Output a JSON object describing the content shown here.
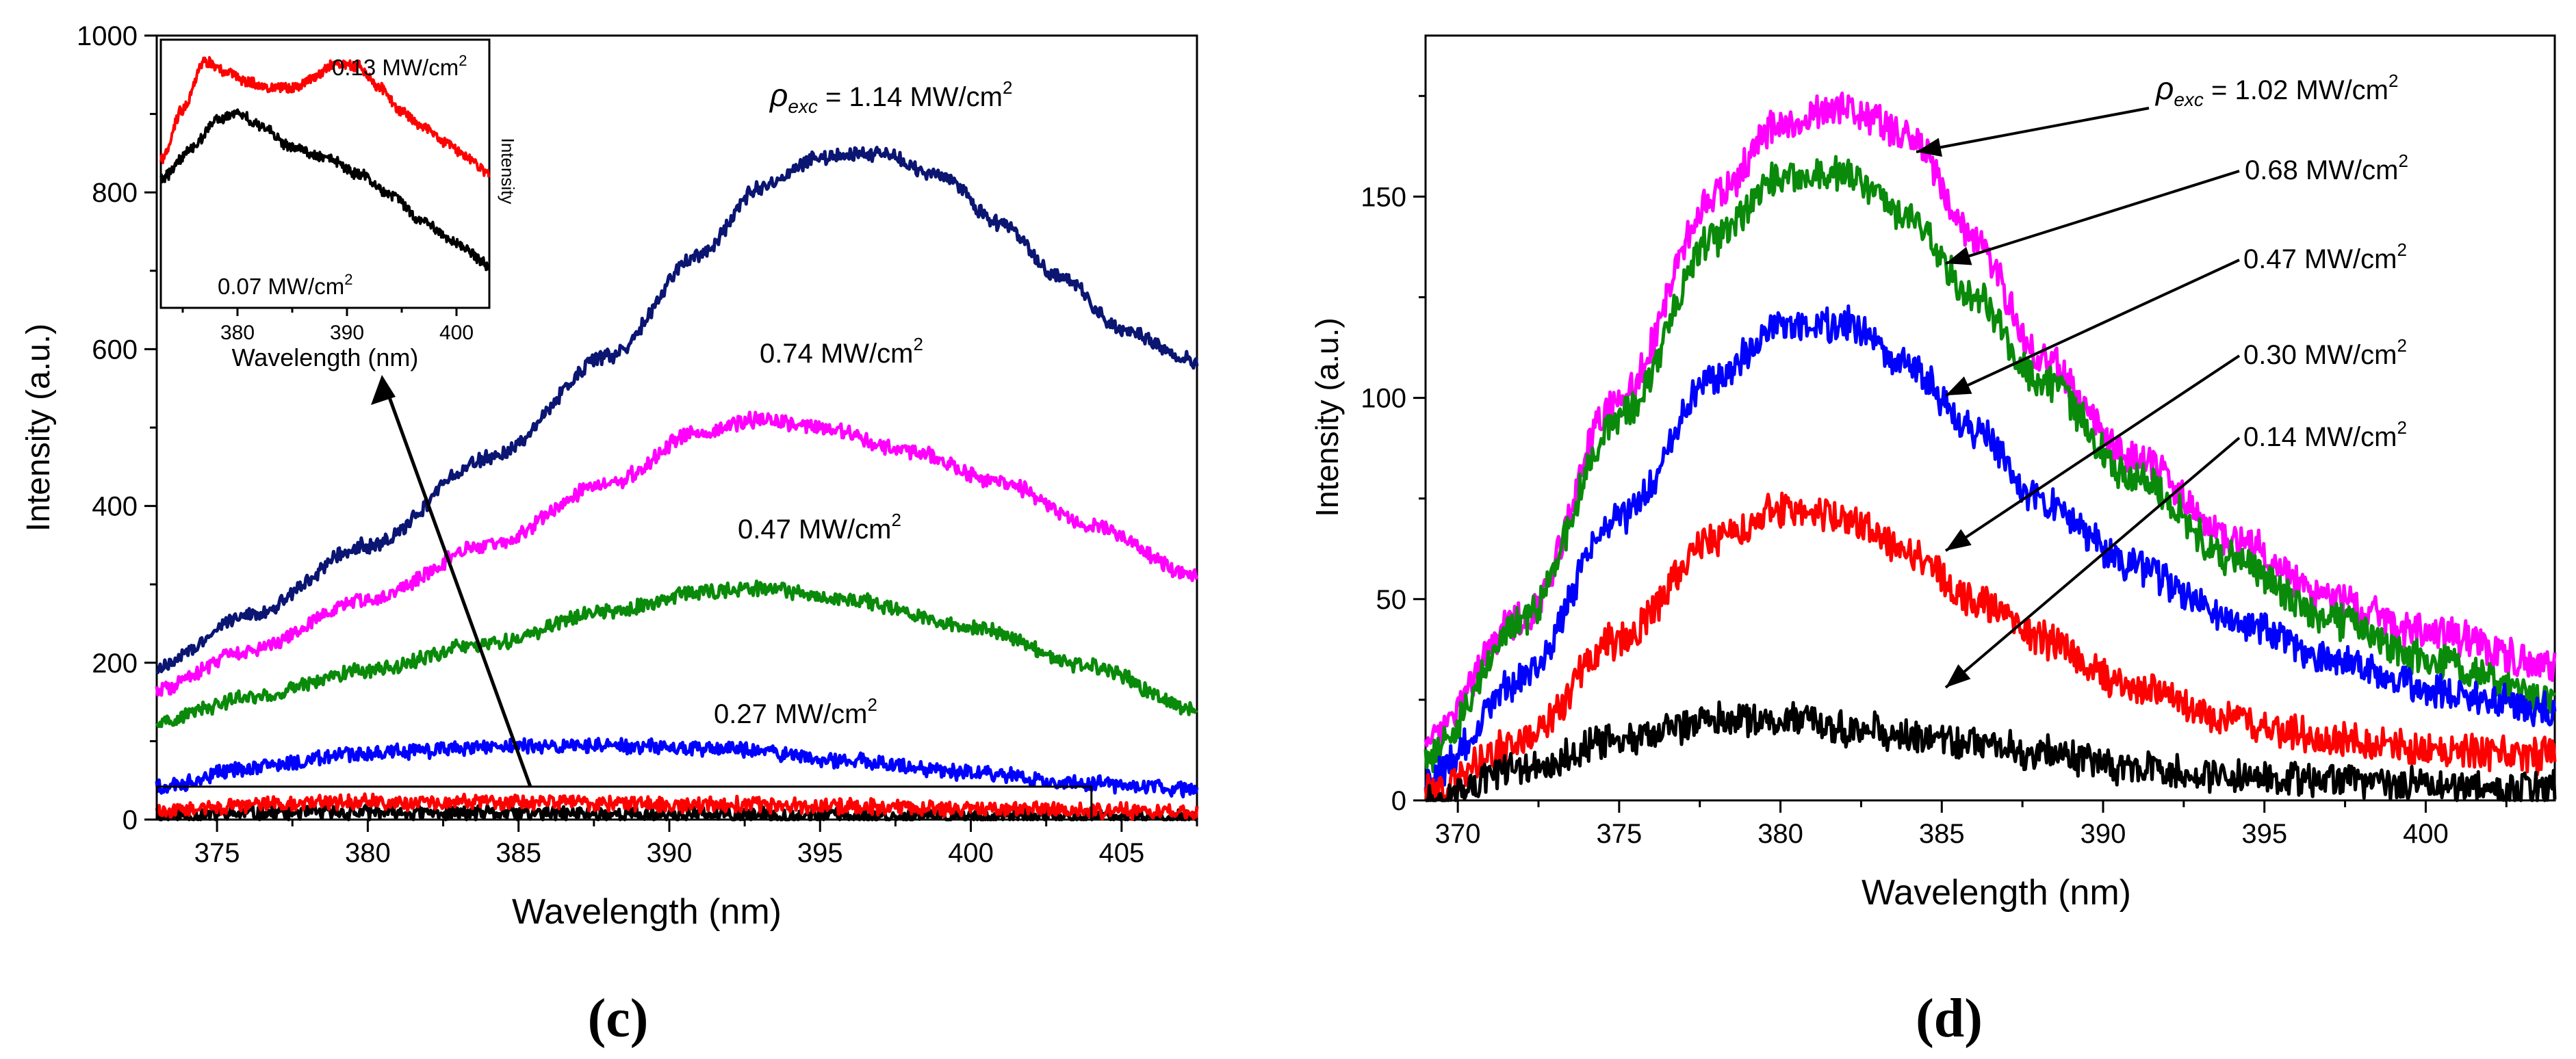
{
  "panel_labels": {
    "c": "(c)",
    "d": "(d)"
  },
  "chart_data": [
    {
      "id": "c",
      "type": "line",
      "xlabel": "Wavelength (nm)",
      "ylabel": "Intensity (a.u.)",
      "xlim": [
        373,
        407.5
      ],
      "ylim": [
        0,
        1000
      ],
      "xticks": [
        375,
        380,
        385,
        390,
        395,
        400,
        405
      ],
      "yticks": [
        0,
        200,
        400,
        600,
        800,
        1000
      ],
      "noise": 11,
      "series": [
        {
          "name": "1.14 MW/cm2",
          "color": "#0b1572",
          "points": [
            [
              373,
              195
            ],
            [
              376,
              260
            ],
            [
              380,
              350
            ],
            [
              384,
              460
            ],
            [
              388,
              590
            ],
            [
              391,
              720
            ],
            [
              393,
              805
            ],
            [
              395,
              845
            ],
            [
              397,
              850
            ],
            [
              399,
              820
            ],
            [
              401,
              760
            ],
            [
              403,
              690
            ],
            [
              405,
              625
            ],
            [
              407.5,
              585
            ]
          ]
        },
        {
          "name": "0.74 MW/cm2",
          "color": "#ff00ff",
          "points": [
            [
              373,
              165
            ],
            [
              376,
              215
            ],
            [
              380,
              280
            ],
            [
              384,
              350
            ],
            [
              388,
              430
            ],
            [
              391,
              495
            ],
            [
              393,
              510
            ],
            [
              395,
              500
            ],
            [
              398,
              470
            ],
            [
              401,
              430
            ],
            [
              404,
              375
            ],
            [
              407.5,
              310
            ]
          ]
        },
        {
          "name": "0.47 MW/cm2",
          "color": "#0a8a0a",
          "points": [
            [
              373,
              125
            ],
            [
              376,
              155
            ],
            [
              380,
              190
            ],
            [
              384,
              225
            ],
            [
              388,
              265
            ],
            [
              391,
              290
            ],
            [
              393,
              295
            ],
            [
              396,
              280
            ],
            [
              400,
              245
            ],
            [
              404,
              195
            ],
            [
              407.5,
              140
            ]
          ]
        },
        {
          "name": "0.27 MW/cm2",
          "color": "#0000ff",
          "points": [
            [
              373,
              40
            ],
            [
              376,
              65
            ],
            [
              380,
              85
            ],
            [
              384,
              92
            ],
            [
              388,
              94
            ],
            [
              392,
              90
            ],
            [
              396,
              75
            ],
            [
              400,
              60
            ],
            [
              404,
              45
            ],
            [
              407.5,
              38
            ]
          ]
        },
        {
          "name": "0.13 MW/cm2",
          "color": "#ff0000",
          "points": [
            [
              373,
              12
            ],
            [
              378,
              22
            ],
            [
              385,
              22
            ],
            [
              392,
              19
            ],
            [
              400,
              14
            ],
            [
              407.5,
              10
            ]
          ]
        },
        {
          "name": "0.07 MW/cm2",
          "color": "#000000",
          "points": [
            [
              373,
              5
            ],
            [
              378,
              9
            ],
            [
              385,
              8
            ],
            [
              392,
              6
            ],
            [
              400,
              4
            ],
            [
              407.5,
              3
            ]
          ]
        }
      ],
      "annotations": [
        {
          "rho": "ρ",
          "sub": "exc",
          "value": " = 1.14 MW/cm",
          "sup": "2"
        },
        {
          "value": "0.74 MW/cm",
          "sup": "2"
        },
        {
          "value": "0.47 MW/cm",
          "sup": "2"
        },
        {
          "value": "0.27 MW/cm",
          "sup": "2"
        }
      ],
      "zoom_box": {
        "x": [
          373,
          404
        ],
        "y": [
          0,
          42
        ]
      },
      "inset": {
        "xlabel": "Wavelength (nm)",
        "ylabel": "Intensity",
        "xlim": [
          373,
          403
        ],
        "ylim": [
          0,
          100
        ],
        "xticks": [
          380,
          390,
          400
        ],
        "noise": 2.2,
        "series": [
          {
            "name": "0.13 MW/cm2",
            "color": "#ff0000",
            "points": [
              [
                373,
                55
              ],
              [
                375,
                74
              ],
              [
                377,
                92
              ],
              [
                379,
                88
              ],
              [
                381,
                84
              ],
              [
                383,
                82
              ],
              [
                385,
                82
              ],
              [
                387,
                86
              ],
              [
                389,
                91
              ],
              [
                391,
                90
              ],
              [
                393,
                82
              ],
              [
                395,
                73
              ],
              [
                397,
                67
              ],
              [
                399,
                62
              ],
              [
                401,
                56
              ],
              [
                403,
                50
              ]
            ]
          },
          {
            "name": "0.07 MW/cm2",
            "color": "#000000",
            "points": [
              [
                373,
                48
              ],
              [
                376,
                60
              ],
              [
                378,
                70
              ],
              [
                380,
                73
              ],
              [
                382,
                68
              ],
              [
                385,
                60
              ],
              [
                388,
                56
              ],
              [
                391,
                50
              ],
              [
                394,
                42
              ],
              [
                397,
                32
              ],
              [
                400,
                24
              ],
              [
                403,
                16
              ]
            ]
          }
        ],
        "annotations": [
          {
            "value": "0.13 MW/cm",
            "sup": "2"
          },
          {
            "value": "0.07 MW/cm",
            "sup": "2"
          }
        ]
      }
    },
    {
      "id": "d",
      "type": "line",
      "xlabel": "Wavelength (nm)",
      "ylabel": "Intensity (a.u.)",
      "xlim": [
        369,
        404
      ],
      "ylim": [
        0,
        190
      ],
      "xticks": [
        370,
        375,
        380,
        385,
        390,
        395,
        400
      ],
      "yticks": [
        0,
        50,
        100,
        150
      ],
      "noise": 5,
      "series": [
        {
          "name": "1.02 MW/cm2",
          "color": "#ff00ff",
          "points": [
            [
              369,
              15
            ],
            [
              372,
              45
            ],
            [
              375,
              100
            ],
            [
              378,
              150
            ],
            [
              380,
              168
            ],
            [
              382,
              172
            ],
            [
              384,
              165
            ],
            [
              386,
              140
            ],
            [
              388,
              110
            ],
            [
              391,
              85
            ],
            [
              394,
              65
            ],
            [
              397,
              50
            ],
            [
              400,
              42
            ],
            [
              404,
              33
            ]
          ]
        },
        {
          "name": "0.68 MW/cm2",
          "color": "#0a8a0a",
          "points": [
            [
              369,
              10
            ],
            [
              372,
              45
            ],
            [
              375,
              95
            ],
            [
              378,
              140
            ],
            [
              380,
              155
            ],
            [
              382,
              156
            ],
            [
              384,
              145
            ],
            [
              386,
              125
            ],
            [
              388,
              105
            ],
            [
              391,
              80
            ],
            [
              394,
              60
            ],
            [
              397,
              45
            ],
            [
              400,
              35
            ],
            [
              404,
              25
            ]
          ]
        },
        {
          "name": "0.47 MW/cm2",
          "color": "#0000ff",
          "points": [
            [
              369,
              5
            ],
            [
              372,
              30
            ],
            [
              375,
              70
            ],
            [
              378,
              105
            ],
            [
              380,
              118
            ],
            [
              382,
              118
            ],
            [
              384,
              108
            ],
            [
              386,
              92
            ],
            [
              388,
              75
            ],
            [
              391,
              58
            ],
            [
              394,
              45
            ],
            [
              397,
              35
            ],
            [
              400,
              28
            ],
            [
              404,
              22
            ]
          ]
        },
        {
          "name": "0.30 MW/cm2",
          "color": "#ff0000",
          "points": [
            [
              369,
              2
            ],
            [
              372,
              15
            ],
            [
              375,
              40
            ],
            [
              378,
              65
            ],
            [
              380,
              72
            ],
            [
              382,
              70
            ],
            [
              384,
              62
            ],
            [
              386,
              50
            ],
            [
              388,
              40
            ],
            [
              391,
              28
            ],
            [
              394,
              20
            ],
            [
              397,
              15
            ],
            [
              400,
              13
            ],
            [
              404,
              11
            ]
          ]
        },
        {
          "name": "0.14 MW/cm2",
          "color": "#000000",
          "points": [
            [
              369,
              0
            ],
            [
              372,
              8
            ],
            [
              375,
              15
            ],
            [
              378,
              20
            ],
            [
              380,
              20
            ],
            [
              382,
              18
            ],
            [
              385,
              15
            ],
            [
              388,
              12
            ],
            [
              391,
              8
            ],
            [
              394,
              6
            ],
            [
              397,
              5
            ],
            [
              400,
              4
            ],
            [
              404,
              3
            ]
          ]
        }
      ],
      "annotations": [
        {
          "rho": "ρ",
          "sub": "exc",
          "value": " = 1.02 MW/cm",
          "sup": "2"
        },
        {
          "value": "0.68 MW/cm",
          "sup": "2"
        },
        {
          "value": "0.47 MW/cm",
          "sup": "2"
        },
        {
          "value": "0.30 MW/cm",
          "sup": "2"
        },
        {
          "value": "0.14 MW/cm",
          "sup": "2"
        }
      ]
    }
  ]
}
